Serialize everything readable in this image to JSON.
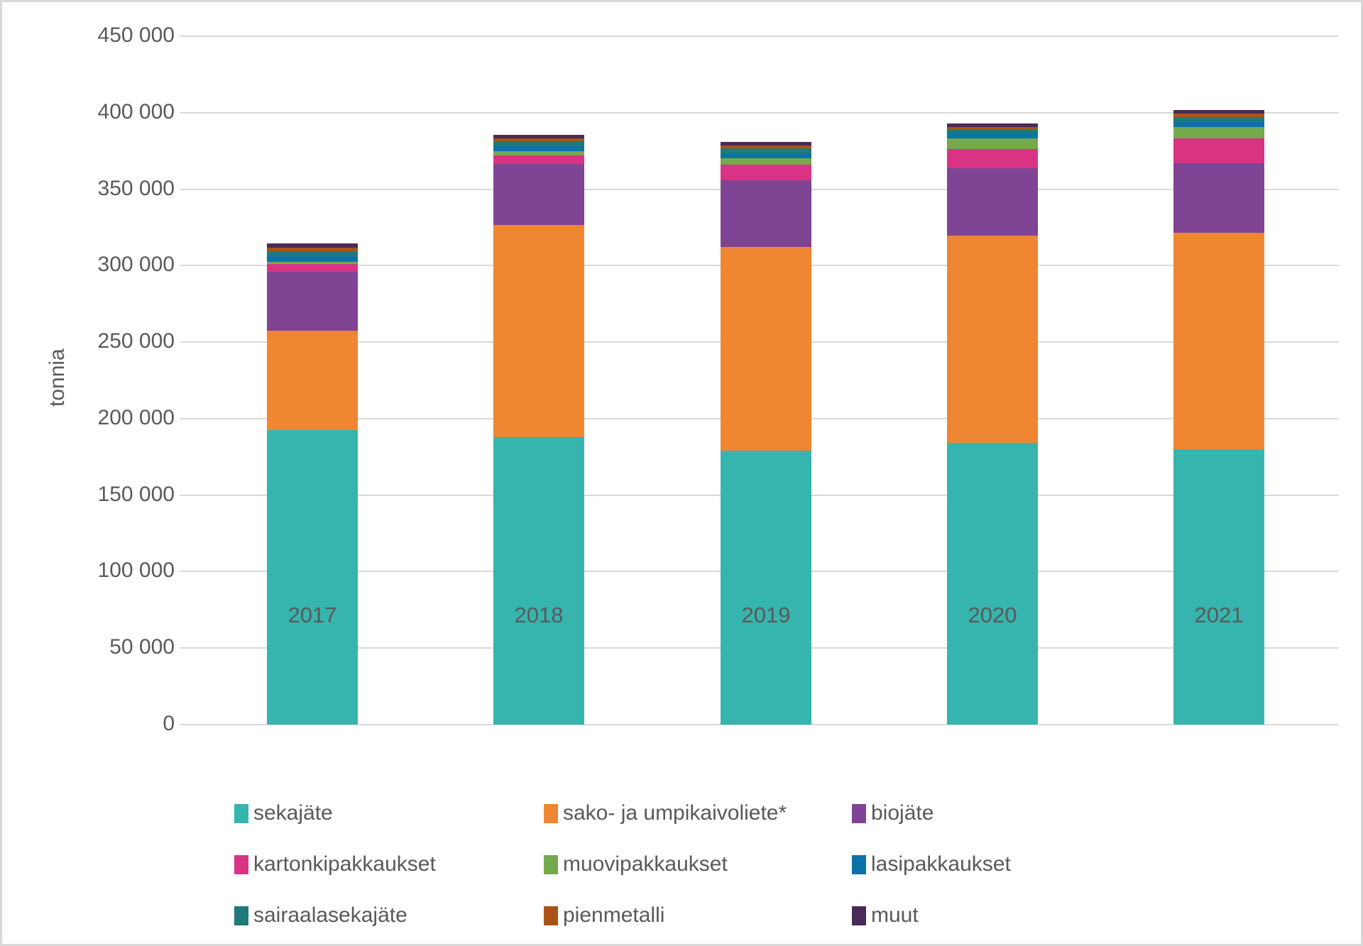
{
  "chart_data": {
    "type": "bar",
    "stacked": true,
    "title": "",
    "xlabel": "",
    "ylabel": "tonnia",
    "ylim": [
      0,
      450000
    ],
    "y_tick_step": 50000,
    "y_tick_labels": [
      "0",
      "50 000",
      "100 000",
      "150 000",
      "200 000",
      "250 000",
      "300 000",
      "350 000",
      "400 000",
      "450 000"
    ],
    "categories": [
      "2017",
      "2018",
      "2019",
      "2020",
      "2021"
    ],
    "series": [
      {
        "name": "sekajäte",
        "color": "#36b5ae",
        "values": [
          192700,
          188100,
          179200,
          184100,
          180000
        ]
      },
      {
        "name": "sako- ja umpikaivoliete*",
        "color": "#ef8632",
        "values": [
          64800,
          138400,
          133100,
          135700,
          141500
        ]
      },
      {
        "name": "biojäte",
        "color": "#7f4494",
        "values": [
          38300,
          39900,
          43500,
          43900,
          45300
        ]
      },
      {
        "name": "kartonkipakkaukset",
        "color": "#d93384",
        "values": [
          5300,
          5800,
          10300,
          12600,
          16200
        ]
      },
      {
        "name": "muovipakkaukset",
        "color": "#74a94e",
        "values": [
          1600,
          2600,
          4200,
          6800,
          7700
        ]
      },
      {
        "name": "lasipakkaukset",
        "color": "#0d72a8",
        "values": [
          3400,
          3200,
          3200,
          3600,
          3200
        ]
      },
      {
        "name": "sairaalasekajäte",
        "color": "#1f7a78",
        "values": [
          3500,
          3400,
          3100,
          2100,
          3200
        ]
      },
      {
        "name": "pienmetalli",
        "color": "#a85419",
        "values": [
          2200,
          1900,
          1900,
          1800,
          2500
        ]
      },
      {
        "name": "muut",
        "color": "#4a2a57",
        "values": [
          2900,
          2300,
          2200,
          2300,
          2200
        ]
      }
    ],
    "legend_position": "bottom",
    "grid": true,
    "gridline_color": "#d9d9d9",
    "axis_text_color": "#595959"
  }
}
